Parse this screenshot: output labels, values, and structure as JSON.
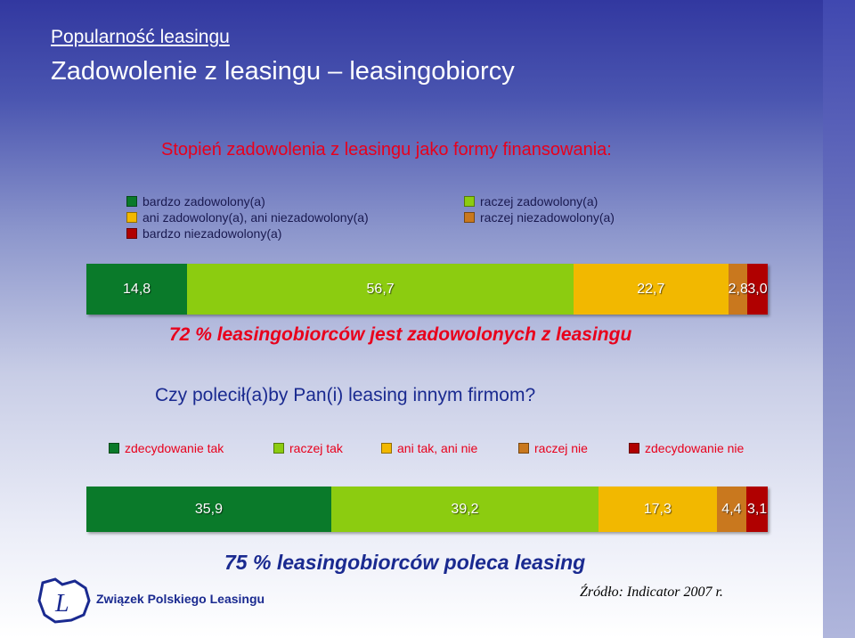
{
  "header": {
    "section_link": "Popularność leasingu",
    "title": "Zadowolenie z leasingu – leasingobiorcy"
  },
  "colors": {
    "very_positive": "#0a7a2a",
    "positive": "#8ccc10",
    "neutral": "#f2b800",
    "negative": "#c9781e",
    "very_negative": "#b00000"
  },
  "chart_data": [
    {
      "type": "bar",
      "orientation": "horizontal-stacked",
      "title": "Stopień zadowolenia z leasingu jako formy finansowania:",
      "legend": [
        "bardzo zadowolony(a)",
        "raczej zadowolony(a)",
        "ani zadowolony(a), ani niezadowolony(a)",
        "raczej niezadowolony(a)",
        "bardzo niezadowolony(a)"
      ],
      "value_labels": [
        "14,8",
        "56,7",
        "22,7",
        "2,8",
        "3,0"
      ],
      "values": [
        14.8,
        56.7,
        22.7,
        2.8,
        3.0
      ],
      "legend_placement": "top",
      "summary": "72 % leasingobiorców jest zadowolonych z leasingu"
    },
    {
      "type": "bar",
      "orientation": "horizontal-stacked",
      "title": "Czy polecił(a)by Pan(i) leasing innym firmom?",
      "legend": [
        "zdecydowanie tak",
        "raczej tak",
        "ani tak, ani nie",
        "raczej nie",
        "zdecydowanie nie"
      ],
      "value_labels": [
        "35,9",
        "39,2",
        "17,3",
        "4,4",
        "3,1"
      ],
      "values": [
        35.9,
        39.2,
        17.3,
        4.4,
        3.1
      ],
      "legend_placement": "top",
      "summary": "75 % leasingobiorców poleca leasing"
    }
  ],
  "footer": {
    "logo_text": "Związek Polskiego Leasingu",
    "logo_letter": "L",
    "source": "Źródło: Indicator 2007 r."
  }
}
